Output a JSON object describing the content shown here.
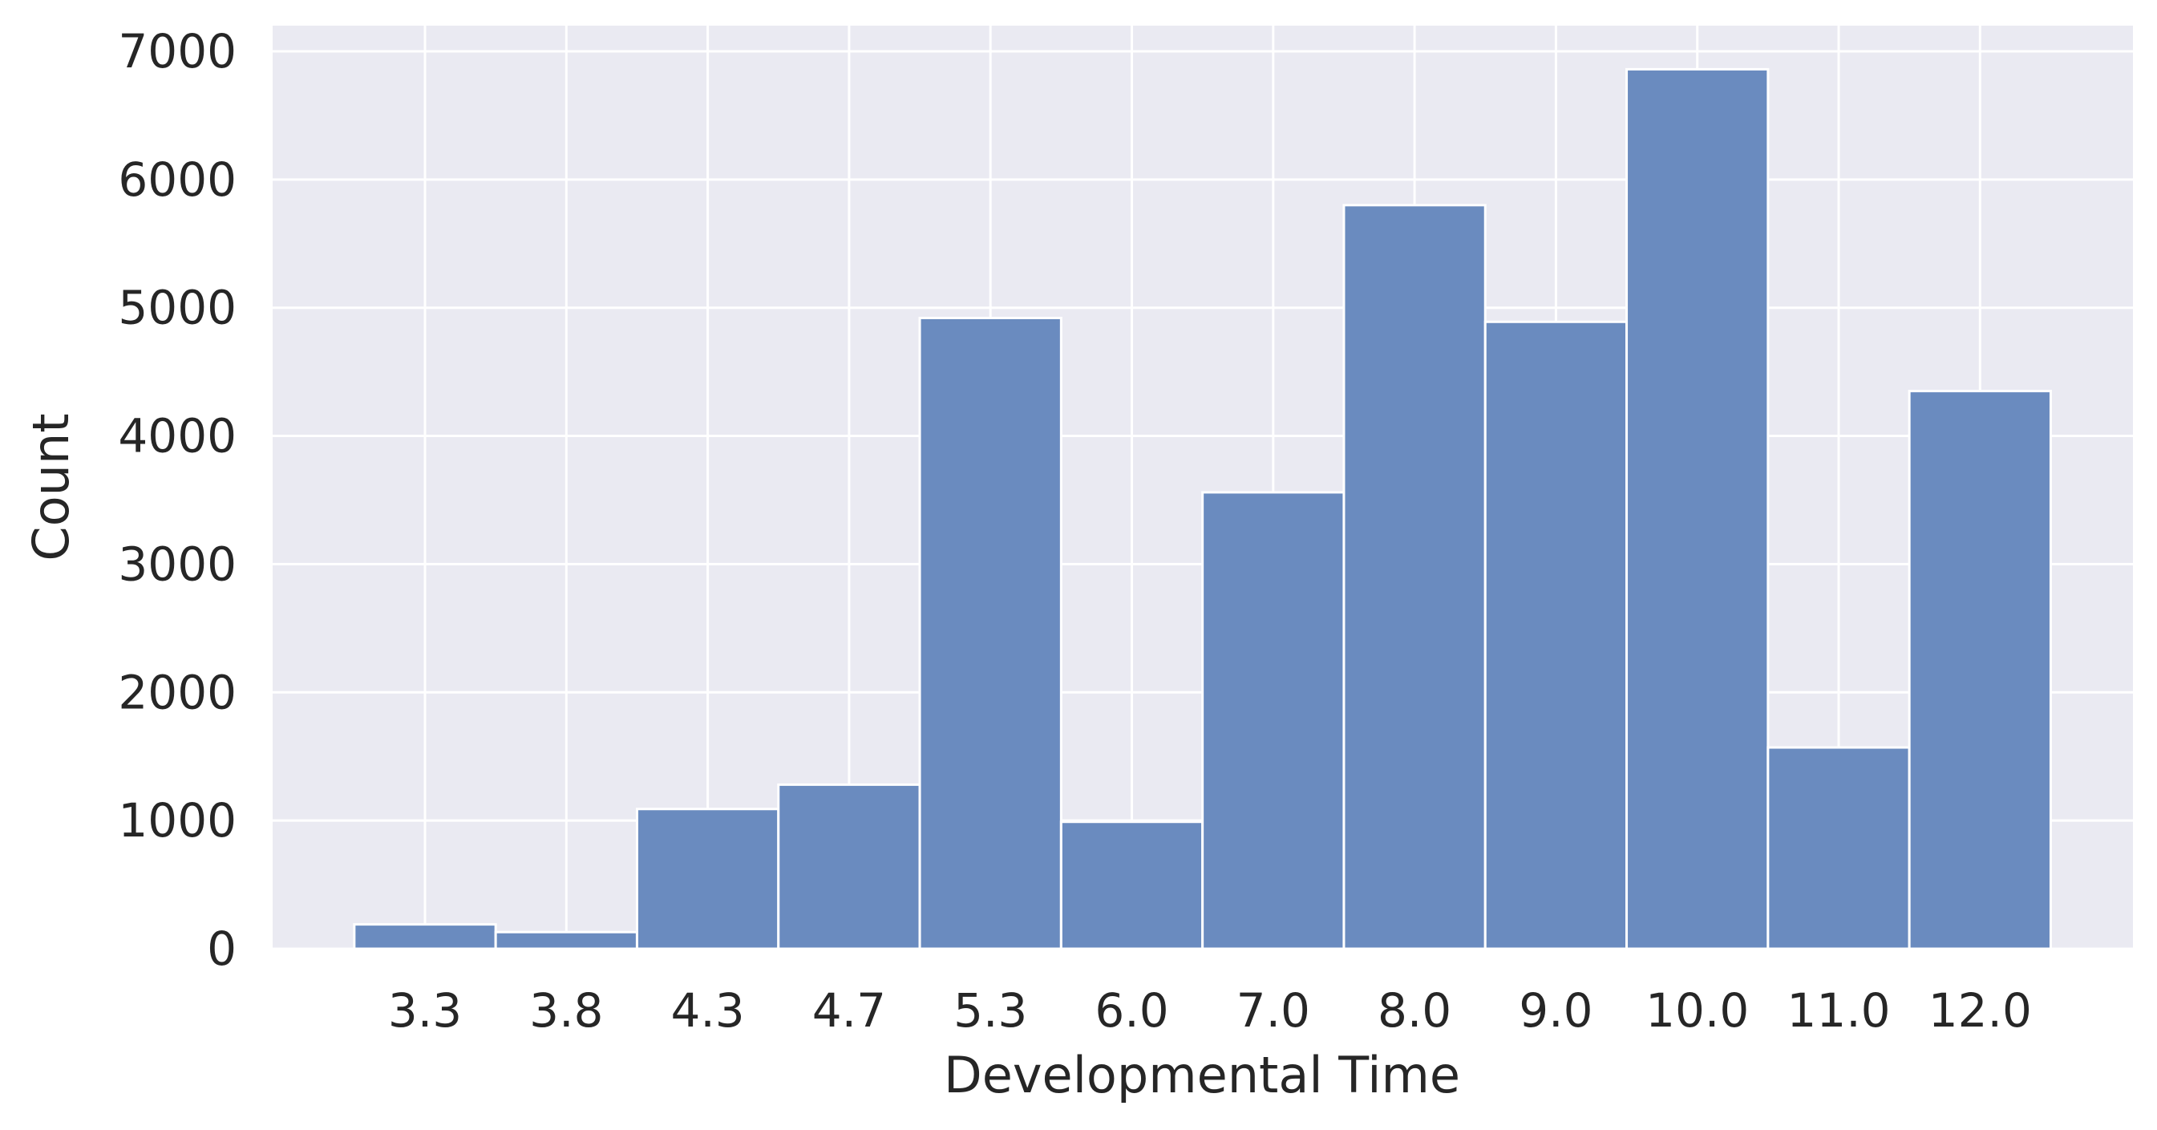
{
  "chart_data": {
    "type": "bar",
    "categories": [
      "3.3",
      "3.8",
      "4.3",
      "4.7",
      "5.3",
      "6.0",
      "7.0",
      "8.0",
      "9.0",
      "10.0",
      "11.0",
      "12.0"
    ],
    "values": [
      190,
      130,
      1090,
      1280,
      4920,
      990,
      3560,
      5800,
      4890,
      6860,
      1570,
      4350
    ],
    "title": "",
    "xlabel": "Developmental Time",
    "ylabel": "Count",
    "ylim": [
      0,
      7200
    ],
    "yticks": [
      0,
      1000,
      2000,
      3000,
      4000,
      5000,
      6000,
      7000
    ],
    "grid": true,
    "colors": {
      "bar": "#6a8bbf",
      "bar_edge": "#ffffff",
      "plot_background": "#eaeaf2",
      "grid": "#ffffff",
      "text": "#262626"
    }
  }
}
